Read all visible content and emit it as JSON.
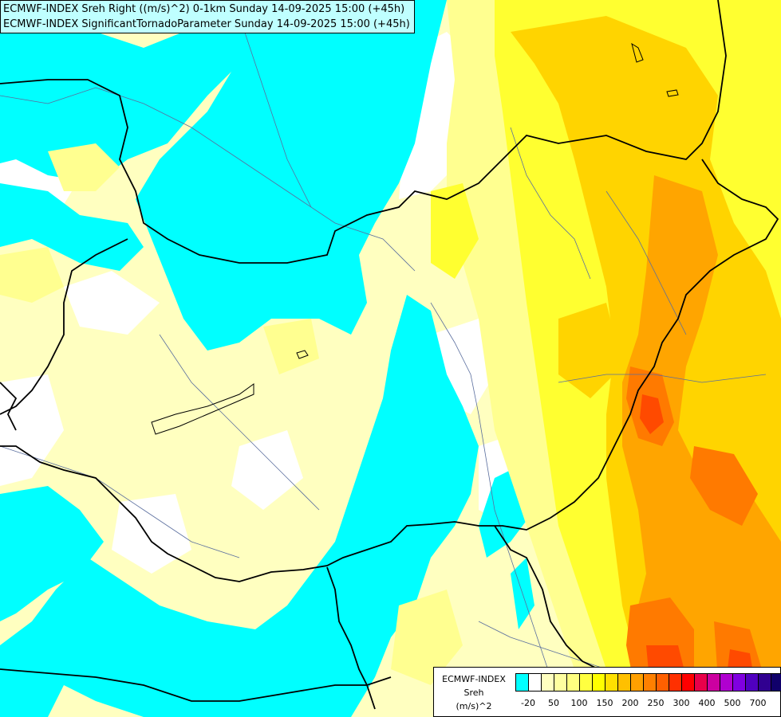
{
  "header": {
    "line1": "ECMWF-INDEX Sreh Right ((m/s)^2) 0-1km Sunday 14-09-2025 15:00 (+45h)",
    "line2": "ECMWF-INDEX SignificantTornadoParameter Sunday 14-09-2025 15:00 (+45h)"
  },
  "legend": {
    "title": "ECMWF-INDEX",
    "variable": "Sreh",
    "unit": "(m/s)^2",
    "colors": [
      "#00ffff",
      "#ffffff",
      "#ffffc0",
      "#ffffa0",
      "#ffff80",
      "#ffff40",
      "#ffff00",
      "#ffe000",
      "#ffc000",
      "#ffa000",
      "#ff8000",
      "#ff6000",
      "#ff3000",
      "#ff0000",
      "#e8004a",
      "#cc00a0",
      "#b000d0",
      "#8000e0",
      "#5000c0",
      "#300090",
      "#10006a"
    ],
    "ticks": [
      "-20",
      "50",
      "100",
      "150",
      "200",
      "250",
      "300",
      "400",
      "500",
      "700"
    ]
  },
  "palette": {
    "cyan": "#00ffff",
    "white": "#ffffff",
    "pale": "#ffffc0",
    "light_yellow": "#ffff80",
    "yellow": "#ffff00",
    "gold": "#ffd000",
    "orange": "#ffa000",
    "deep_orange": "#ff7000",
    "red_orange": "#ff4000"
  }
}
